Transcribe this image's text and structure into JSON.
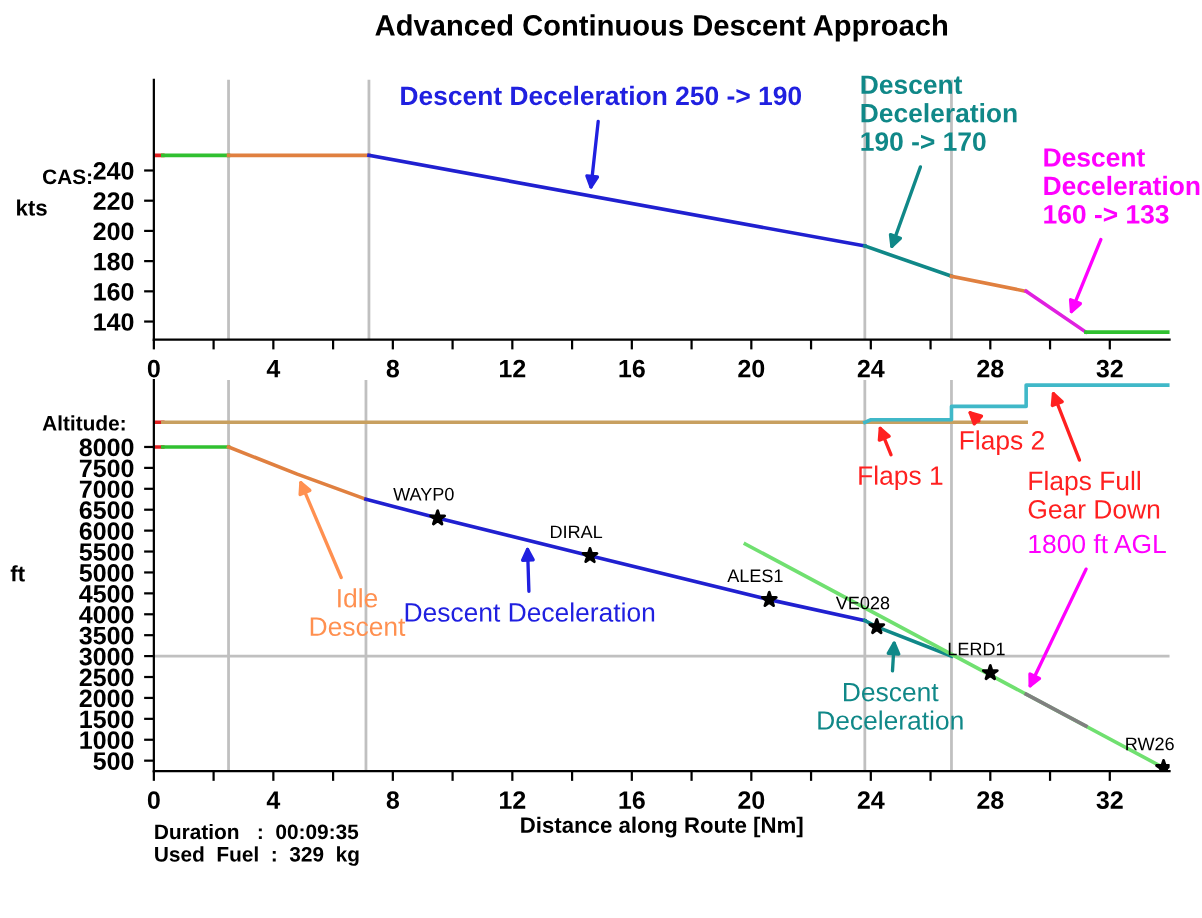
{
  "chart_data": [
    {
      "type": "line",
      "title": "Advanced Continuous Descent Approach",
      "ylabel": "kts",
      "xlim": [
        0,
        34
      ],
      "ylim": [
        128,
        300
      ],
      "xticks": [
        0,
        {
          "value": 2,
          "label": null
        },
        4,
        {
          "value": 6,
          "label": null
        },
        8,
        {
          "value": 10,
          "label": null
        },
        12,
        {
          "value": 14,
          "label": null
        },
        16,
        {
          "value": 18,
          "label": null
        },
        20,
        {
          "value": 22,
          "label": null
        },
        24,
        {
          "value": 26,
          "label": null
        },
        28,
        {
          "value": 30,
          "label": null
        },
        32
      ],
      "yticks": [
        140,
        160,
        180,
        200,
        220,
        240
      ],
      "grid": false,
      "marker": "none",
      "line_style": "solid",
      "ref_lines": [
        {
          "axis": "x",
          "value": 2.5,
          "color": "#c0c0c0"
        },
        {
          "axis": "x",
          "value": 7.2,
          "color": "#c0c0c0"
        },
        {
          "axis": "x",
          "value": 23.8,
          "color": "#c0c0c0"
        },
        {
          "axis": "x",
          "value": 26.7,
          "color": "#c0c0c0"
        }
      ],
      "series": [
        {
          "color": "#e02020",
          "x": [
            0,
            0.3
          ],
          "values": [
            250,
            250
          ]
        },
        {
          "color": "#30c030",
          "x": [
            0.3,
            2.5
          ],
          "values": [
            250,
            250
          ]
        },
        {
          "color": "#e08040",
          "x": [
            2.5,
            7.2
          ],
          "values": [
            250,
            250
          ]
        },
        {
          "color": "#2020d0",
          "x": [
            7.2,
            23.8
          ],
          "values": [
            250,
            190
          ]
        },
        {
          "color": "#108888",
          "x": [
            23.8,
            26.7
          ],
          "values": [
            190,
            170
          ]
        },
        {
          "color": "#e08040",
          "x": [
            26.7,
            29.2
          ],
          "values": [
            170,
            160
          ]
        },
        {
          "color": "#e020e0",
          "x": [
            29.2,
            31.2
          ],
          "values": [
            160,
            133
          ]
        },
        {
          "color": "#30c030",
          "x": [
            31.2,
            34
          ],
          "values": [
            133,
            133
          ]
        }
      ],
      "annotations": [
        "CAS:",
        {
          "text": "Descent Deceleration 250 -> 190",
          "x": 14.6,
          "y": 223
        },
        {
          "text": "Descent\nDeceleration\n190 -> 170",
          "x": 24.6,
          "y": 184
        },
        {
          "text": "Descent\nDeceleration\n160 -> 133",
          "x": 30.6,
          "y": 141
        }
      ]
    },
    {
      "type": "line",
      "xlabel": "Distance along Route [Nm]",
      "ylabel": "ft",
      "xlim": [
        0,
        34
      ],
      "ylim": [
        250,
        9600
      ],
      "xticks": [
        0,
        {
          "value": 2,
          "label": null
        },
        4,
        {
          "value": 6,
          "label": null
        },
        8,
        {
          "value": 10,
          "label": null
        },
        12,
        {
          "value": 14,
          "label": null
        },
        16,
        {
          "value": 18,
          "label": null
        },
        20,
        {
          "value": 22,
          "label": null
        },
        24,
        {
          "value": 26,
          "label": null
        },
        28,
        {
          "value": 30,
          "label": null
        },
        32
      ],
      "yticks": [
        500,
        1000,
        1500,
        2000,
        2500,
        3000,
        3500,
        4000,
        4500,
        5000,
        5500,
        6000,
        6500,
        7000,
        7500,
        8000
      ],
      "grid": false,
      "marker": "none",
      "line_style": "solid",
      "ref_lines": [
        {
          "axis": "x",
          "value": 2.5,
          "color": "#c0c0c0"
        },
        {
          "axis": "x",
          "value": 7.1,
          "color": "#c0c0c0"
        },
        {
          "axis": "x",
          "value": 23.8,
          "color": "#c0c0c0"
        },
        {
          "axis": "x",
          "value": 26.7,
          "color": "#c0c0c0"
        },
        {
          "axis": "y",
          "value": 3000,
          "color": "#c0c0c0"
        }
      ],
      "series": [
        {
          "color": "#e02020",
          "x": [
            0,
            0.3
          ],
          "values": [
            8590,
            8590
          ]
        },
        {
          "color": "#c8a060",
          "x": [
            0.3,
            29.2
          ],
          "values": [
            8590,
            8590
          ]
        },
        {
          "color": "#40b8c8",
          "x": [
            23.8,
            24,
            26.7,
            26.7,
            29.2,
            29.2,
            34
          ],
          "values": [
            8590,
            8650,
            8650,
            8970,
            8970,
            9480,
            9480
          ]
        },
        {
          "color": "#e02020",
          "x": [
            0,
            0.3
          ],
          "values": [
            8000,
            8000
          ]
        },
        {
          "color": "#30c030",
          "x": [
            0.3,
            2.5
          ],
          "values": [
            8000,
            8000
          ]
        },
        {
          "color": "#e08040",
          "x": [
            2.5,
            4.8,
            7.1
          ],
          "values": [
            8000,
            7350,
            6750
          ]
        },
        {
          "color": "#2020d0",
          "x": [
            7.1,
            9.5,
            14.6,
            20.6,
            23.8
          ],
          "values": [
            6750,
            6300,
            5400,
            4350,
            3850
          ]
        },
        {
          "color": "#108888",
          "x": [
            23.8,
            24.2,
            26.7
          ],
          "values": [
            3850,
            3700,
            3000
          ]
        },
        {
          "color": "#70e070",
          "x": [
            19.8,
            33.8
          ],
          "values": [
            5680,
            330
          ]
        },
        {
          "color": "#808080",
          "x": [
            29.2,
            31.2
          ],
          "values": [
            2090,
            1330
          ]
        },
        {
          "type": "scatter",
          "marker": "star",
          "color": "#000000",
          "x": [
            9.5,
            14.6,
            20.6,
            24.2,
            28,
            33.8
          ],
          "values": [
            6300,
            5400,
            4350,
            3700,
            2600,
            330
          ],
          "value_labels": [
            "WAYP0",
            "DIRAL",
            "ALES1",
            "VE028",
            "LERD1",
            "RW26"
          ]
        }
      ],
      "annotations": [
        "Altitude:",
        {
          "text": "Idle\nDescent",
          "x": 4.8,
          "y": 7350
        },
        {
          "text": "Descent Deceleration",
          "x": 12.5,
          "y": 5770
        },
        {
          "text": "Descent\nDeceleration",
          "x": 24.8,
          "y": 3530
        },
        {
          "text": "Flaps 1",
          "x": 24.2,
          "y": 8650
        },
        {
          "text": "Flaps 2",
          "x": 27.1,
          "y": 8970
        },
        {
          "text": "Flaps Full\nGear Down",
          "x": 30.0,
          "y": 9480
        },
        {
          "text": "1800 ft AGL",
          "x": 29.2,
          "y": 2090
        },
        "Duration   :  00:09:35\nUsed  Fuel  :  329  kg"
      ]
    }
  ]
}
